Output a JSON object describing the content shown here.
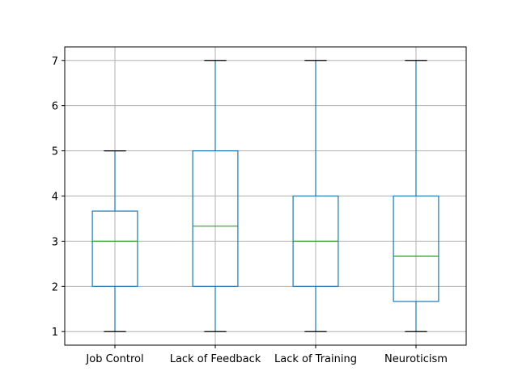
{
  "chart_data": {
    "type": "box",
    "title": "",
    "xlabel": "",
    "ylabel": "",
    "categories": [
      "Job Control",
      "Lack of Feedback",
      "Lack of Training",
      "Neuroticism"
    ],
    "boxes": [
      {
        "name": "Job Control",
        "whisker_low": 1,
        "q1": 2,
        "median": 3,
        "q3": 3.667,
        "whisker_high": 5
      },
      {
        "name": "Lack of Feedback",
        "whisker_low": 1,
        "q1": 2,
        "median": 3.333,
        "q3": 5,
        "whisker_high": 7
      },
      {
        "name": "Lack of Training",
        "whisker_low": 1,
        "q1": 2,
        "median": 3,
        "q3": 4,
        "whisker_high": 7
      },
      {
        "name": "Neuroticism",
        "whisker_low": 1,
        "q1": 1.667,
        "median": 2.667,
        "q3": 4,
        "whisker_high": 7
      }
    ],
    "ylim": [
      0.7,
      7.3
    ],
    "yticks": [
      1,
      2,
      3,
      4,
      5,
      6,
      7
    ],
    "grid": true,
    "colors": {
      "box": "#1f77b4",
      "median": "#2ca02c",
      "caps": "#000000",
      "grid": "#b0b0b0"
    }
  }
}
